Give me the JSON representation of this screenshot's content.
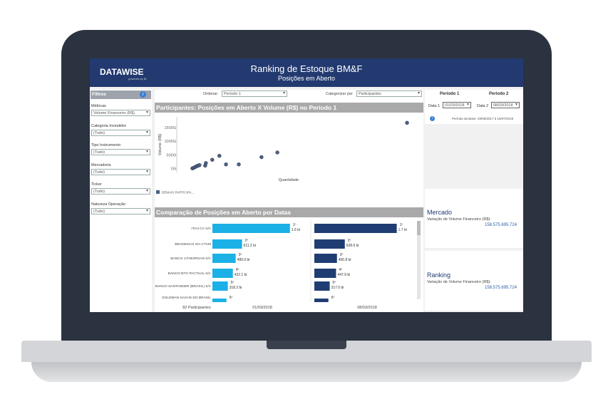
{
  "header": {
    "logo": "DATAWISE",
    "logo_sub": "powered by BI",
    "title": "Ranking de Estoque BM&F",
    "subtitle": "Posições em Aberto"
  },
  "filters": {
    "title": "Filtros",
    "items": [
      {
        "label": "Métricas",
        "value": "Volume Financeiro (R$)"
      },
      {
        "label": "Categoria Investidor",
        "value": "(Tudo)"
      },
      {
        "label": "Tipo Instrumento",
        "value": "(Tudo)"
      },
      {
        "label": "Mercadoria",
        "value": "(Tudo)"
      },
      {
        "label": "Ticker",
        "value": "(Tudo)"
      },
      {
        "label": "Natureza Operação",
        "value": "(Tudo)"
      }
    ]
  },
  "controls": {
    "order_label": "Ordenar",
    "order_value": "Período 1",
    "group_label": "Categorizar por",
    "group_value": "Participantes"
  },
  "periods": {
    "period1": "Período 1",
    "period2": "Período 2",
    "date1_label": "Data 1",
    "date1": "01/03/2018",
    "date2_label": "Data 2",
    "date2": "08/03/2018",
    "base_period": "Período da Base: 28/08/2017 à 16/07/2018"
  },
  "cards": [
    {
      "title": "Mercado",
      "label": "Variação de Volume Financeiro (R$):",
      "value": "158.575.695.724"
    },
    {
      "title": "Ranking",
      "label": "Variação de Volume Financeiro (R$):",
      "value": "158.575.695.724"
    }
  ],
  "scatter": {
    "type": "scatter",
    "title": "Participantes: Posições em Aberto X Volume (R$) no Período 1",
    "y_label": "Volume (R$)",
    "x_label": "Quantidade",
    "legend": "DEMAIS PARTICIPA...",
    "color": "#4a6186",
    "xlim": [
      0,
      100
    ],
    "ylim": [
      -150,
      1900
    ],
    "yticks": [
      {
        "value": 0,
        "label": "0G"
      },
      {
        "value": 500,
        "label": "500G"
      },
      {
        "value": 1000,
        "label": "1000G"
      },
      {
        "value": 1500,
        "label": "1500G"
      }
    ],
    "x": [
      6.6,
      7.2,
      7.8,
      8.4,
      9,
      9.6,
      12,
      12.3,
      15,
      18,
      20.8,
      26.2,
      35.8,
      42.5,
      97.3
    ],
    "values": [
      0,
      20,
      50,
      80,
      100,
      120,
      100,
      195,
      317,
      463,
      146,
      146,
      414,
      585,
      1680
    ]
  },
  "comparison": {
    "type": "bar",
    "title": "Comparação de Posições em Aberto por Datas",
    "footer": "82 Participantes",
    "categories": [
      "ITAU CV S/A",
      "BRADESCO S/A CTVM",
      "BANCO J.P.MORGAN S/A",
      "BANCO BTG PACTUAL S/A",
      "BANCO SANTANDER (BRASIL) S/A",
      "GOLDMAN SACHS DO BRASIL"
    ],
    "ranks": [
      "1º",
      "2º",
      "3º",
      "4º",
      "5º",
      "6º"
    ],
    "series": [
      {
        "name": "01/03/2018",
        "color": "#1bb0e6",
        "values": [
          1600,
          611.2,
          480.0,
          422.1,
          318.2,
          290
        ],
        "value_labels": [
          "1.6 tri",
          "611.2 bi",
          "480.0 bi",
          "422.1 bi",
          "318.2 bi",
          null
        ]
      },
      {
        "name": "08/03/2018",
        "color": "#1f3d73",
        "values": [
          1700,
          628.6,
          466.8,
          447.9,
          317.0,
          290
        ],
        "value_labels": [
          "1.7 tri",
          "628.6 bi",
          "466.8 bi",
          "447.9 bi",
          "317.0 bi",
          null
        ]
      }
    ]
  }
}
